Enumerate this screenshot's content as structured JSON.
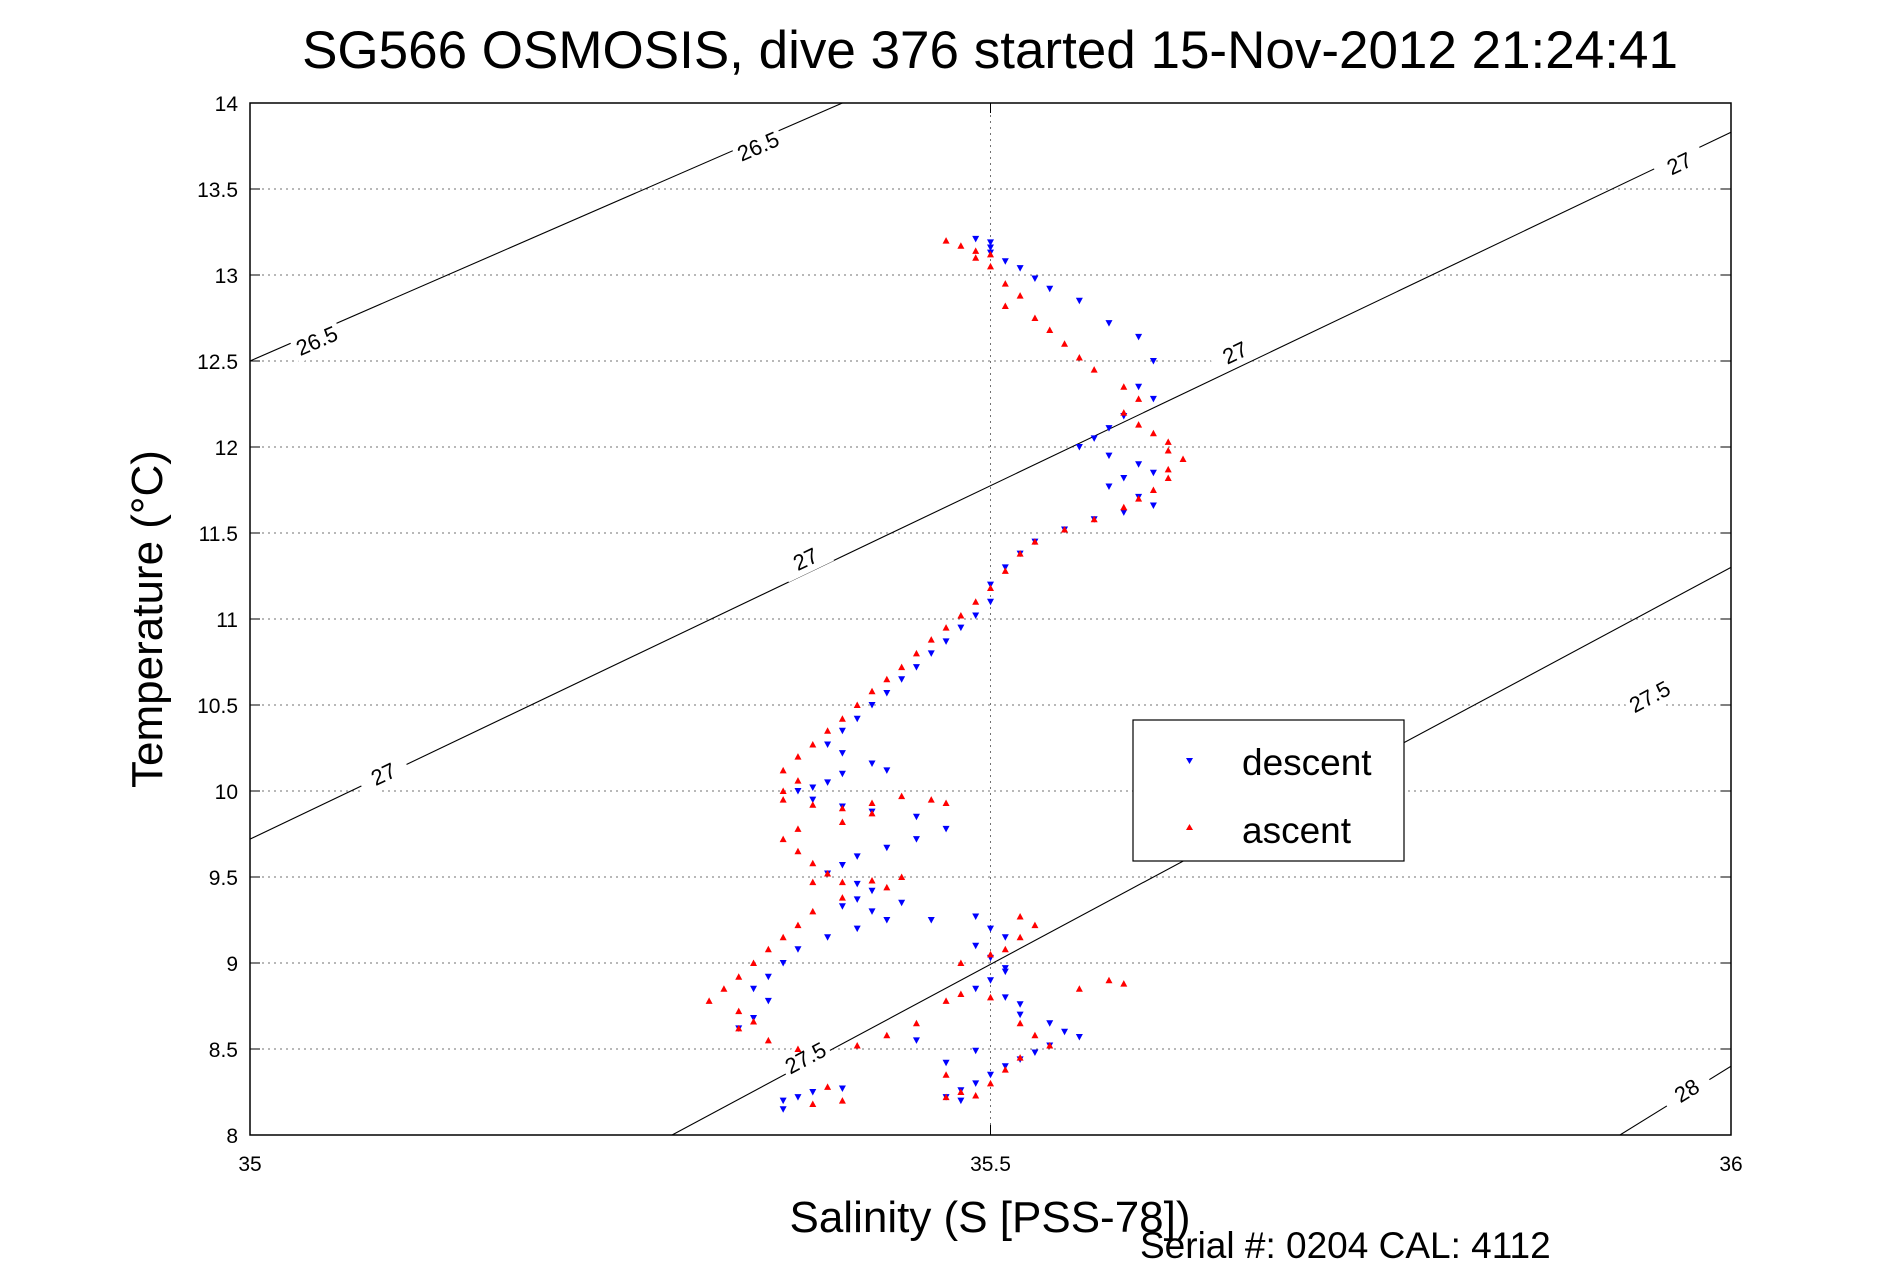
{
  "chart_data": {
    "type": "scatter",
    "title": "SG566 OSMOSIS, dive 376 started 15-Nov-2012 21:24:41",
    "xlabel": "Salinity (S [PSS-78])",
    "ylabel": "Temperature (°C)",
    "xlim": [
      35,
      36
    ],
    "ylim": [
      8,
      14
    ],
    "xticks": [
      "35",
      "35.5",
      "36"
    ],
    "yticks": [
      "8",
      "8.5",
      "9",
      "9.5",
      "10",
      "10.5",
      "11",
      "11.5",
      "12",
      "12.5",
      "13",
      "13.5",
      "14"
    ],
    "grid": true,
    "legend": {
      "placement": "center-right",
      "entries": [
        "descent",
        "ascent"
      ]
    },
    "contours": [
      {
        "label": "26.5",
        "line": [
          [
            35.0,
            12.5
          ],
          [
            35.4,
            14.0
          ]
        ],
        "labels_at": [
          [
            35.045,
            12.62
          ],
          [
            35.343,
            13.75
          ]
        ]
      },
      {
        "label": "27",
        "line": [
          [
            35.0,
            9.72
          ],
          [
            36.0,
            13.83
          ]
        ],
        "labels_at": [
          [
            35.09,
            10.1
          ],
          [
            35.375,
            11.35
          ],
          [
            35.665,
            12.55
          ],
          [
            35.965,
            13.65
          ]
        ]
      },
      {
        "label": "27.5",
        "line": [
          [
            35.285,
            8.0
          ],
          [
            36.0,
            11.3
          ]
        ],
        "labels_at": [
          [
            35.375,
            8.45
          ],
          [
            35.945,
            10.55
          ]
        ]
      },
      {
        "label": "28",
        "line": [
          [
            35.925,
            8.0
          ],
          [
            36.0,
            8.4
          ]
        ],
        "labels_at": [
          [
            35.97,
            8.26
          ]
        ]
      }
    ],
    "series": [
      {
        "name": "descent",
        "color": "#0000ff",
        "marker": "triangle-down",
        "points": [
          [
            35.49,
            13.21
          ],
          [
            35.5,
            13.19
          ],
          [
            35.5,
            13.16
          ],
          [
            35.5,
            13.13
          ],
          [
            35.51,
            13.08
          ],
          [
            35.52,
            13.04
          ],
          [
            35.53,
            12.98
          ],
          [
            35.54,
            12.92
          ],
          [
            35.56,
            12.85
          ],
          [
            35.58,
            12.72
          ],
          [
            35.6,
            12.64
          ],
          [
            35.61,
            12.5
          ],
          [
            35.6,
            12.35
          ],
          [
            35.61,
            12.28
          ],
          [
            35.59,
            12.18
          ],
          [
            35.58,
            12.11
          ],
          [
            35.57,
            12.05
          ],
          [
            35.56,
            12.0
          ],
          [
            35.58,
            11.95
          ],
          [
            35.6,
            11.9
          ],
          [
            35.61,
            11.85
          ],
          [
            35.59,
            11.82
          ],
          [
            35.58,
            11.77
          ],
          [
            35.6,
            11.71
          ],
          [
            35.61,
            11.66
          ],
          [
            35.59,
            11.62
          ],
          [
            35.57,
            11.58
          ],
          [
            35.55,
            11.52
          ],
          [
            35.53,
            11.45
          ],
          [
            35.52,
            11.38
          ],
          [
            35.51,
            11.3
          ],
          [
            35.5,
            11.2
          ],
          [
            35.5,
            11.1
          ],
          [
            35.49,
            11.02
          ],
          [
            35.48,
            10.95
          ],
          [
            35.47,
            10.87
          ],
          [
            35.46,
            10.8
          ],
          [
            35.45,
            10.72
          ],
          [
            35.44,
            10.65
          ],
          [
            35.43,
            10.57
          ],
          [
            35.42,
            10.5
          ],
          [
            35.41,
            10.42
          ],
          [
            35.4,
            10.35
          ],
          [
            35.39,
            10.27
          ],
          [
            35.4,
            10.22
          ],
          [
            35.42,
            10.16
          ],
          [
            35.43,
            10.12
          ],
          [
            35.4,
            10.1
          ],
          [
            35.39,
            10.05
          ],
          [
            35.38,
            10.02
          ],
          [
            35.37,
            10.0
          ],
          [
            35.38,
            9.95
          ],
          [
            35.4,
            9.91
          ],
          [
            35.42,
            9.88
          ],
          [
            35.45,
            9.85
          ],
          [
            35.47,
            9.78
          ],
          [
            35.45,
            9.72
          ],
          [
            35.43,
            9.67
          ],
          [
            35.41,
            9.62
          ],
          [
            35.4,
            9.57
          ],
          [
            35.39,
            9.52
          ],
          [
            35.41,
            9.46
          ],
          [
            35.42,
            9.42
          ],
          [
            35.41,
            9.37
          ],
          [
            35.4,
            9.33
          ],
          [
            35.42,
            9.3
          ],
          [
            35.44,
            9.35
          ],
          [
            35.43,
            9.25
          ],
          [
            35.41,
            9.2
          ],
          [
            35.39,
            9.15
          ],
          [
            35.37,
            9.08
          ],
          [
            35.36,
            9.0
          ],
          [
            35.35,
            8.92
          ],
          [
            35.34,
            8.85
          ],
          [
            35.35,
            8.78
          ],
          [
            35.34,
            8.68
          ],
          [
            35.33,
            8.62
          ],
          [
            35.46,
            9.25
          ],
          [
            35.49,
            9.27
          ],
          [
            35.5,
            9.2
          ],
          [
            35.51,
            9.15
          ],
          [
            35.49,
            9.1
          ],
          [
            35.5,
            9.03
          ],
          [
            35.51,
            8.97
          ],
          [
            35.5,
            8.9
          ],
          [
            35.49,
            8.85
          ],
          [
            35.51,
            8.8
          ],
          [
            35.52,
            8.76
          ],
          [
            35.52,
            8.7
          ],
          [
            35.54,
            8.65
          ],
          [
            35.55,
            8.6
          ],
          [
            35.56,
            8.57
          ],
          [
            35.54,
            8.52
          ],
          [
            35.53,
            8.48
          ],
          [
            35.52,
            8.44
          ],
          [
            35.51,
            8.4
          ],
          [
            35.5,
            8.35
          ],
          [
            35.49,
            8.3
          ],
          [
            35.48,
            8.26
          ],
          [
            35.47,
            8.22
          ],
          [
            35.48,
            8.2
          ],
          [
            35.4,
            8.27
          ],
          [
            35.38,
            8.25
          ],
          [
            35.37,
            8.22
          ],
          [
            35.36,
            8.2
          ],
          [
            35.36,
            8.15
          ],
          [
            35.45,
            8.55
          ],
          [
            35.47,
            8.42
          ],
          [
            35.49,
            8.49
          ],
          [
            35.51,
            8.95
          ]
        ]
      },
      {
        "name": "ascent",
        "color": "#ff0000",
        "marker": "triangle-up",
        "points": [
          [
            35.47,
            13.2
          ],
          [
            35.48,
            13.17
          ],
          [
            35.49,
            13.14
          ],
          [
            35.5,
            13.12
          ],
          [
            35.49,
            13.1
          ],
          [
            35.5,
            13.05
          ],
          [
            35.51,
            12.95
          ],
          [
            35.52,
            12.88
          ],
          [
            35.51,
            12.82
          ],
          [
            35.53,
            12.75
          ],
          [
            35.54,
            12.68
          ],
          [
            35.55,
            12.6
          ],
          [
            35.56,
            12.52
          ],
          [
            35.57,
            12.45
          ],
          [
            35.59,
            12.35
          ],
          [
            35.6,
            12.28
          ],
          [
            35.59,
            12.2
          ],
          [
            35.6,
            12.13
          ],
          [
            35.61,
            12.08
          ],
          [
            35.62,
            12.03
          ],
          [
            35.62,
            11.98
          ],
          [
            35.63,
            11.93
          ],
          [
            35.62,
            11.87
          ],
          [
            35.62,
            11.82
          ],
          [
            35.61,
            11.75
          ],
          [
            35.6,
            11.7
          ],
          [
            35.59,
            11.65
          ],
          [
            35.57,
            11.58
          ],
          [
            35.55,
            11.52
          ],
          [
            35.53,
            11.45
          ],
          [
            35.52,
            11.38
          ],
          [
            35.51,
            11.28
          ],
          [
            35.5,
            11.18
          ],
          [
            35.49,
            11.1
          ],
          [
            35.48,
            11.02
          ],
          [
            35.47,
            10.95
          ],
          [
            35.46,
            10.88
          ],
          [
            35.45,
            10.8
          ],
          [
            35.44,
            10.72
          ],
          [
            35.43,
            10.65
          ],
          [
            35.42,
            10.58
          ],
          [
            35.41,
            10.5
          ],
          [
            35.4,
            10.42
          ],
          [
            35.39,
            10.35
          ],
          [
            35.38,
            10.27
          ],
          [
            35.37,
            10.2
          ],
          [
            35.36,
            10.12
          ],
          [
            35.37,
            10.06
          ],
          [
            35.36,
            10.0
          ],
          [
            35.36,
            9.95
          ],
          [
            35.38,
            9.92
          ],
          [
            35.4,
            9.9
          ],
          [
            35.42,
            9.93
          ],
          [
            35.44,
            9.97
          ],
          [
            35.46,
            9.95
          ],
          [
            35.47,
            9.93
          ],
          [
            35.42,
            9.87
          ],
          [
            35.4,
            9.82
          ],
          [
            35.37,
            9.78
          ],
          [
            35.36,
            9.72
          ],
          [
            35.37,
            9.65
          ],
          [
            35.38,
            9.58
          ],
          [
            35.39,
            9.52
          ],
          [
            35.38,
            9.47
          ],
          [
            35.4,
            9.47
          ],
          [
            35.42,
            9.48
          ],
          [
            35.44,
            9.5
          ],
          [
            35.43,
            9.44
          ],
          [
            35.4,
            9.38
          ],
          [
            35.38,
            9.3
          ],
          [
            35.37,
            9.22
          ],
          [
            35.36,
            9.15
          ],
          [
            35.35,
            9.08
          ],
          [
            35.34,
            9.0
          ],
          [
            35.33,
            8.92
          ],
          [
            35.32,
            8.85
          ],
          [
            35.31,
            8.78
          ],
          [
            35.33,
            8.72
          ],
          [
            35.34,
            8.66
          ],
          [
            35.33,
            8.62
          ],
          [
            35.35,
            8.55
          ],
          [
            35.37,
            8.5
          ],
          [
            35.48,
            9.0
          ],
          [
            35.5,
            9.05
          ],
          [
            35.51,
            9.08
          ],
          [
            35.52,
            9.15
          ],
          [
            35.53,
            9.22
          ],
          [
            35.52,
            9.27
          ],
          [
            35.47,
            8.78
          ],
          [
            35.48,
            8.82
          ],
          [
            35.5,
            8.8
          ],
          [
            35.52,
            8.65
          ],
          [
            35.53,
            8.58
          ],
          [
            35.54,
            8.52
          ],
          [
            35.52,
            8.45
          ],
          [
            35.51,
            8.38
          ],
          [
            35.5,
            8.3
          ],
          [
            35.48,
            8.25
          ],
          [
            35.47,
            8.22
          ],
          [
            35.49,
            8.23
          ],
          [
            35.4,
            8.2
          ],
          [
            35.39,
            8.28
          ],
          [
            35.38,
            8.18
          ],
          [
            35.56,
            8.85
          ],
          [
            35.58,
            8.9
          ],
          [
            35.59,
            8.88
          ],
          [
            35.45,
            8.65
          ],
          [
            35.43,
            8.58
          ],
          [
            35.41,
            8.52
          ],
          [
            35.47,
            8.35
          ]
        ]
      }
    ]
  },
  "footer": {
    "serial": "Serial #: 0204  CAL: 4112"
  }
}
